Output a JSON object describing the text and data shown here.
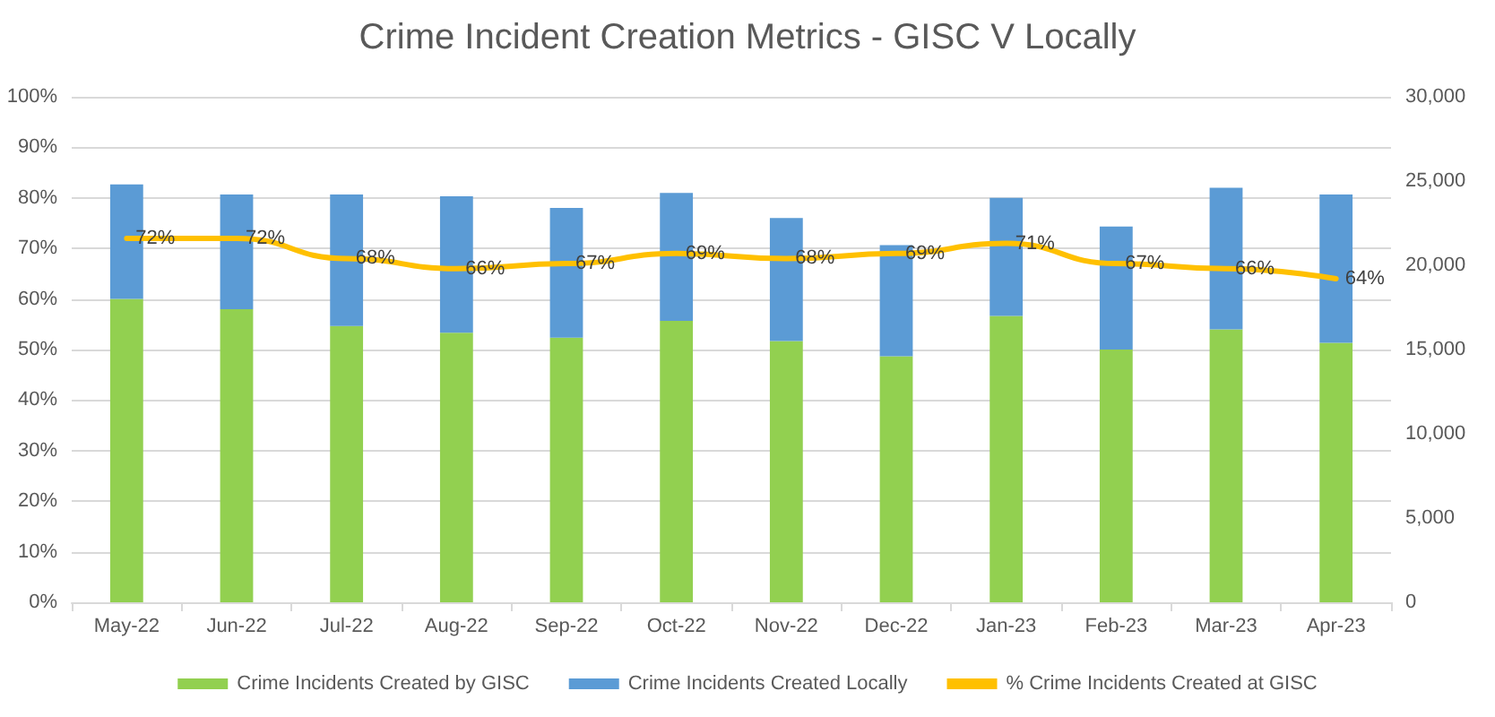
{
  "chart_data": {
    "type": "bar",
    "title": "Crime Incident Creation Metrics - GISC V Locally",
    "categories": [
      "May-22",
      "Jun-22",
      "Jul-22",
      "Aug-22",
      "Sep-22",
      "Oct-22",
      "Nov-22",
      "Dec-22",
      "Jan-23",
      "Feb-23",
      "Mar-23",
      "Apr-23"
    ],
    "stacked": true,
    "series": [
      {
        "name": "Crime Incidents Created by GISC",
        "axis": "y2",
        "color": "#92d050",
        "values": [
          18000,
          17400,
          16400,
          16000,
          15700,
          16700,
          15500,
          14600,
          17000,
          15000,
          16200,
          15400
        ]
      },
      {
        "name": "Crime Incidents Created Locally",
        "axis": "y2",
        "color": "#5b9bd5",
        "values": [
          6800,
          6800,
          7800,
          8100,
          7700,
          7600,
          7300,
          6600,
          7000,
          7300,
          8400,
          8800
        ]
      },
      {
        "name": "% Crime Incidents Created at GISC",
        "type": "line",
        "color": "#ffc000",
        "values": [
          72,
          72,
          68,
          66,
          67,
          69,
          68,
          69,
          71,
          67,
          66,
          64
        ],
        "value_labels": [
          "72%",
          "72%",
          "68%",
          "66%",
          "67%",
          "69%",
          "68%",
          "69%",
          "71%",
          "67%",
          "66%",
          "64%"
        ]
      }
    ],
    "ylim": [
      0,
      100
    ],
    "yticks": [
      {
        "value": 0,
        "label": "0%"
      },
      {
        "value": 10,
        "label": "10%"
      },
      {
        "value": 20,
        "label": "20%"
      },
      {
        "value": 30,
        "label": "30%"
      },
      {
        "value": 40,
        "label": "40%"
      },
      {
        "value": 50,
        "label": "50%"
      },
      {
        "value": 60,
        "label": "60%"
      },
      {
        "value": 70,
        "label": "70%"
      },
      {
        "value": 80,
        "label": "80%"
      },
      {
        "value": 90,
        "label": "90%"
      },
      {
        "value": 100,
        "label": "100%"
      }
    ],
    "y2lim": [
      0,
      30000
    ],
    "y2ticks": [
      0,
      {
        "value": 5000,
        "label": "5,000"
      },
      {
        "value": 10000,
        "label": "10,000"
      },
      {
        "value": 15000,
        "label": "15,000"
      },
      {
        "value": 20000,
        "label": "20,000"
      },
      {
        "value": 25000,
        "label": "25,000"
      },
      {
        "value": 30000,
        "label": "30,000"
      }
    ],
    "grid": "y",
    "legend": "bottom",
    "marker": "none"
  }
}
